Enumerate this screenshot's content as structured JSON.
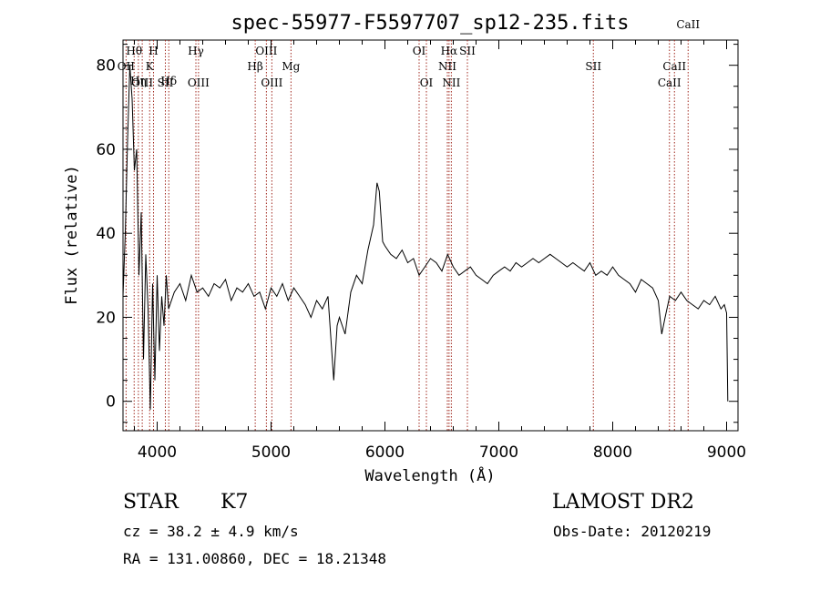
{
  "chart_data": {
    "type": "line",
    "title": "spec-55977-F5597707_sp12-235.fits",
    "xlabel": "Wavelength (Å)",
    "ylabel": "Flux (relative)",
    "xlim": [
      3700,
      9100
    ],
    "ylim": [
      -7,
      86
    ],
    "x_ticks": [
      4000,
      5000,
      6000,
      7000,
      8000,
      9000
    ],
    "y_ticks": [
      0,
      20,
      40,
      60,
      80
    ],
    "line_color": "#000000",
    "marker_color": "#a0281e",
    "series": [
      {
        "x": [
          3700,
          3720,
          3740,
          3760,
          3780,
          3800,
          3820,
          3840,
          3860,
          3880,
          3900,
          3920,
          3940,
          3960,
          3980,
          4000,
          4020,
          4040,
          4060,
          4080,
          4100,
          4150,
          4200,
          4250,
          4300,
          4350,
          4400,
          4450,
          4500,
          4550,
          4600,
          4650,
          4700,
          4750,
          4800,
          4850,
          4900,
          4950,
          5000,
          5050,
          5100,
          5150,
          5200,
          5250,
          5300,
          5350,
          5400,
          5450,
          5500,
          5550,
          5580,
          5600,
          5650,
          5700,
          5750,
          5800,
          5850,
          5900,
          5930,
          5950,
          5980,
          6000,
          6050,
          6100,
          6150,
          6200,
          6250,
          6300,
          6350,
          6400,
          6450,
          6500,
          6550,
          6600,
          6650,
          6700,
          6750,
          6800,
          6850,
          6900,
          6950,
          7000,
          7050,
          7100,
          7150,
          7200,
          7250,
          7300,
          7350,
          7400,
          7450,
          7500,
          7550,
          7600,
          7650,
          7700,
          7750,
          7800,
          7850,
          7900,
          7950,
          8000,
          8050,
          8100,
          8150,
          8200,
          8250,
          8300,
          8350,
          8400,
          8430,
          8460,
          8500,
          8550,
          8600,
          8650,
          8700,
          8750,
          8800,
          8850,
          8900,
          8950,
          8980,
          9000,
          9010
        ],
        "y": [
          25,
          40,
          62,
          80,
          72,
          55,
          60,
          30,
          45,
          10,
          35,
          22,
          -2,
          28,
          5,
          30,
          12,
          25,
          18,
          30,
          22,
          26,
          28,
          24,
          30,
          26,
          27,
          25,
          28,
          27,
          29,
          24,
          27,
          26,
          28,
          25,
          26,
          22,
          27,
          25,
          28,
          24,
          27,
          25,
          23,
          20,
          24,
          22,
          25,
          5,
          18,
          20,
          16,
          26,
          30,
          28,
          36,
          42,
          52,
          50,
          38,
          37,
          35,
          34,
          36,
          33,
          34,
          30,
          32,
          34,
          33,
          31,
          35,
          32,
          30,
          31,
          32,
          30,
          29,
          28,
          30,
          31,
          32,
          31,
          33,
          32,
          33,
          34,
          33,
          34,
          35,
          34,
          33,
          32,
          33,
          32,
          31,
          33,
          30,
          31,
          30,
          32,
          30,
          29,
          28,
          26,
          29,
          28,
          27,
          24,
          16,
          20,
          25,
          24,
          26,
          24,
          23,
          22,
          24,
          23,
          25,
          22,
          23,
          21,
          0
        ]
      }
    ],
    "spectral_lines": [
      {
        "label": "Hθ",
        "wavelength": 3798,
        "row": 1
      },
      {
        "label": "Hη",
        "wavelength": 3835,
        "row": 3
      },
      {
        "label": "OII",
        "wavelength": 3727,
        "row": 2
      },
      {
        "label": "OIII",
        "wavelength": 3869,
        "row": 4
      },
      {
        "label": "H",
        "wavelength": 3968,
        "row": 1
      },
      {
        "label": "K",
        "wavelength": 3934,
        "row": 2
      },
      {
        "label": "Hδ",
        "wavelength": 4102,
        "row": 3
      },
      {
        "label": "SII",
        "wavelength": 4072,
        "row": 4
      },
      {
        "label": "Hγ",
        "wavelength": 4340,
        "row": 1
      },
      {
        "label": "OIII",
        "wavelength": 4363,
        "row": 4
      },
      {
        "label": "OIII",
        "wavelength": 4959,
        "row": 1
      },
      {
        "label": "Hβ",
        "wavelength": 4861,
        "row": 2
      },
      {
        "label": "OIII",
        "wavelength": 5007,
        "row": 4
      },
      {
        "label": "Mg",
        "wavelength": 5175,
        "row": 2
      },
      {
        "label": "OI",
        "wavelength": 6300,
        "row": 1
      },
      {
        "label": "OI",
        "wavelength": 6364,
        "row": 4
      },
      {
        "label": "Hα",
        "wavelength": 6563,
        "row": 1
      },
      {
        "label": "NII",
        "wavelength": 6548,
        "row": 2
      },
      {
        "label": "NII",
        "wavelength": 6583,
        "row": 4
      },
      {
        "label": "SII",
        "wavelength": 6724,
        "row": 1
      },
      {
        "label": "SII",
        "wavelength": 7830,
        "row": 2
      },
      {
        "label": "CaII",
        "wavelength": 8542,
        "row": 2
      },
      {
        "label": "CaII",
        "wavelength": 8498,
        "row": 4
      },
      {
        "label": "CaII",
        "wavelength": 8662,
        "row": 0
      }
    ]
  },
  "info": {
    "object_class": "STAR",
    "subclass": "K7",
    "survey": "LAMOST DR2",
    "cz": "cz = 38.2 ± 4.9 km/s",
    "obs_date": "Obs-Date: 20120219",
    "coords": "RA = 131.00860, DEC =  18.21348"
  }
}
